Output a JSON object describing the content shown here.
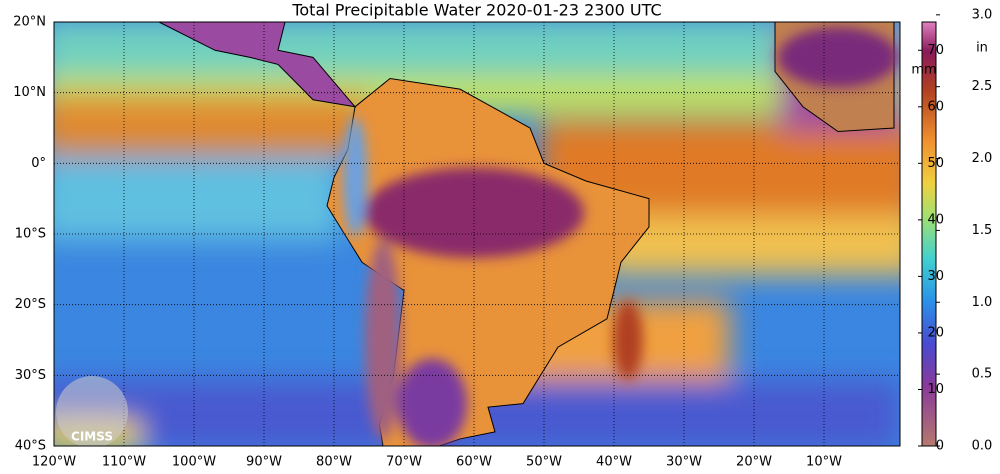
{
  "title": "Total Precipitable Water  2020-01-23 2300 UTC",
  "map": {
    "xlim": [
      -120,
      0
    ],
    "ylim": [
      -40,
      20
    ],
    "xticks": [
      {
        "value": -120,
        "label": "120°W"
      },
      {
        "value": -110,
        "label": "110°W"
      },
      {
        "value": -100,
        "label": "100°W"
      },
      {
        "value": -90,
        "label": "90°W"
      },
      {
        "value": -80,
        "label": "80°W"
      },
      {
        "value": -70,
        "label": "70°W"
      },
      {
        "value": -60,
        "label": "60°W"
      },
      {
        "value": -50,
        "label": "50°W"
      },
      {
        "value": -40,
        "label": "40°W"
      },
      {
        "value": -30,
        "label": "30°W"
      },
      {
        "value": -20,
        "label": "20°W"
      },
      {
        "value": -10,
        "label": "10°W"
      }
    ],
    "yticks": [
      {
        "value": 20,
        "label": "20°N"
      },
      {
        "value": 10,
        "label": "10°N"
      },
      {
        "value": 0,
        "label": "0°"
      },
      {
        "value": -10,
        "label": "10°S"
      },
      {
        "value": -20,
        "label": "20°S"
      },
      {
        "value": -30,
        "label": "30°S"
      },
      {
        "value": -40,
        "label": "40°S"
      }
    ],
    "logo": "CIMSS"
  },
  "colorbar": {
    "label": "mm",
    "label2": "in",
    "ylim": [
      0,
      75
    ],
    "yticks": [
      0,
      10,
      20,
      30,
      40,
      50,
      60,
      70
    ],
    "y2lim": [
      0,
      2.95
    ],
    "y2ticks": [
      {
        "value": 0,
        "label": "0.0"
      },
      {
        "value": 0.5,
        "label": "0.5"
      },
      {
        "value": 1,
        "label": "1.0"
      },
      {
        "value": 1.5,
        "label": "1.5"
      },
      {
        "value": 2,
        "label": "2.0"
      },
      {
        "value": 2.5,
        "label": "2.5"
      },
      {
        "value": 3,
        "label": "3.0"
      }
    ]
  }
}
